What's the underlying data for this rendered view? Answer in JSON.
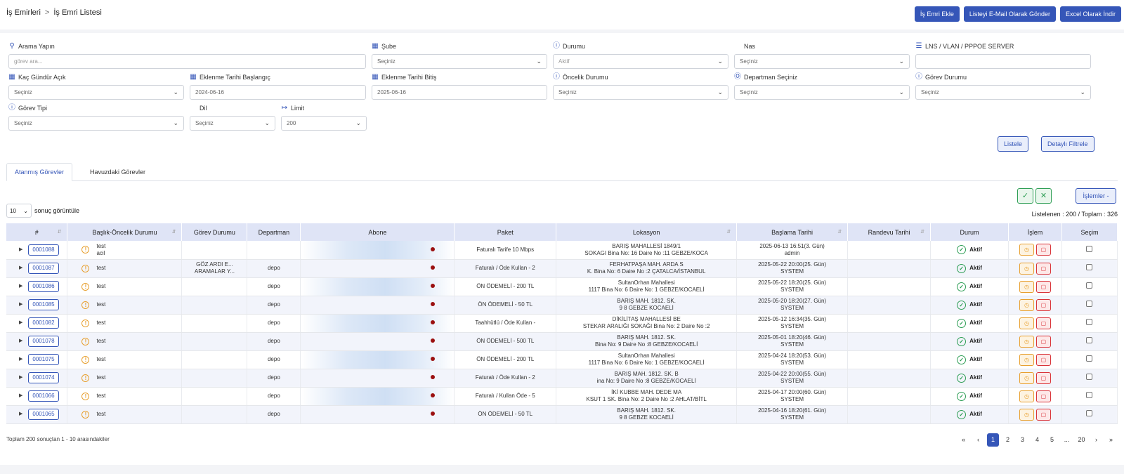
{
  "breadcrumb": {
    "root": "İş Emirleri",
    "sep": ">",
    "current": "İş Emri Listesi"
  },
  "top_buttons": {
    "add": "İş Emri Ekle",
    "email": "Listeyi E-Mail Olarak Gönder",
    "excel": "Excel Olarak İndir"
  },
  "filters": {
    "arama": {
      "label": "Arama Yapın",
      "placeholder": "görev ara..."
    },
    "sube": {
      "label": "Şube",
      "value": "Seçiniz"
    },
    "durumu": {
      "label": "Durumu",
      "value": "Aktif"
    },
    "nas": {
      "label": "Nas",
      "value": "Seçiniz"
    },
    "lns": {
      "label": "LNS / VLAN / PPPOE SERVER",
      "value": ""
    },
    "kac_gun": {
      "label": "Kaç Gündür Açık",
      "value": "Seçiniz"
    },
    "baslangic": {
      "label": "Eklenme Tarihi Başlangıç",
      "value": "2024-06-16"
    },
    "bitis": {
      "label": "Eklenme Tarihi Bitiş",
      "value": "2025-06-16"
    },
    "oncelik": {
      "label": "Öncelik Durumu",
      "value": "Seçiniz"
    },
    "departman": {
      "label": "Departman Seçiniz",
      "value": "Seçiniz"
    },
    "gorev_durumu": {
      "label": "Görev Durumu",
      "value": "Seçiniz"
    },
    "gorev_tipi": {
      "label": "Görev Tipi",
      "value": "Seçiniz"
    },
    "dil": {
      "label": "Dil",
      "value": "Seçiniz"
    },
    "limit": {
      "label": "Limit",
      "value": "200"
    }
  },
  "filter_buttons": {
    "listele": "Listele",
    "detayli": "Detaylı Filtrele"
  },
  "tabs": {
    "assigned": "Atanmış Görevler",
    "pool": "Havuzdaki Görevler"
  },
  "toolbar": {
    "approve_icon": "check-icon",
    "reject_icon": "x-icon",
    "islemler": "İşlemler -"
  },
  "page_size": {
    "value": "10",
    "suffix": "sonuç görüntüle"
  },
  "counts": {
    "text": "Listelenen : 200 / Toplam : 326"
  },
  "table": {
    "headers": [
      "#",
      "Başlık-Öncelik Durumu",
      "Görev Durumu",
      "Departman",
      "Abone",
      "Paket",
      "Lokasyon",
      "Başlama Tarihi",
      "Randevu Tarihi",
      "Durum",
      "İşlem",
      "Seçim"
    ],
    "rows": [
      {
        "id": "0001088",
        "title": "test",
        "title2": "acil",
        "gorev": "",
        "dep": "",
        "paket": "Faturalı Tarife 10 Mbps",
        "lok1": "BARIŞ MAHALLESİ 1849/1",
        "lok2": "SOKAGI Bina No: 16 Daire No :11 GEBZE/KOCA",
        "t1": "2025-06-13 16:51(3. Gün)",
        "t2": "admin",
        "randevu": "",
        "durum": "Aktif"
      },
      {
        "id": "0001087",
        "title": "test",
        "title2": "",
        "gorev": "GÖZ ARDI E... ARAMALAR Y...",
        "dep": "depo",
        "paket": "Faturalı / Öde Kullan - 2",
        "lok1": "FERHATPAŞA MAH. ARDA S",
        "lok2": "K. Bina No: 6 Daire No :2 ÇATALCA/İSTANBUL",
        "t1": "2025-05-22 20:00(25. Gün)",
        "t2": "SYSTEM",
        "randevu": "",
        "durum": "Aktif"
      },
      {
        "id": "0001086",
        "title": "test",
        "title2": "",
        "gorev": "",
        "dep": "depo",
        "paket": "ÖN ÖDEMELİ - 200 TL",
        "lok1": "SultanOrhan Mahallesi",
        "lok2": "1117 Bina No: 6 Daire No: 1 GEBZE/KOCAELİ",
        "t1": "2025-05-22 18:20(25. Gün)",
        "t2": "SYSTEM",
        "randevu": "",
        "durum": "Aktif"
      },
      {
        "id": "0001085",
        "title": "test",
        "title2": "",
        "gorev": "",
        "dep": "depo",
        "paket": "ÖN ÖDEMELİ - 50 TL",
        "lok1": "BARIŞ MAH. 1812. SK.",
        "lok2": "9 8 GEBZE KOCAELİ",
        "t1": "2025-05-20 18:20(27. Gün)",
        "t2": "SYSTEM",
        "randevu": "",
        "durum": "Aktif"
      },
      {
        "id": "0001082",
        "title": "test",
        "title2": "",
        "gorev": "",
        "dep": "depo",
        "paket": "Taahhütlü / Öde Kullan -",
        "lok1": "DİKİLİTAŞ MAHALLESİ BE",
        "lok2": "STEKAR ARALIĞI SOKAĞI Bina No: 2 Daire No :2",
        "t1": "2025-05-12 16:34(35. Gün)",
        "t2": "SYSTEM",
        "randevu": "",
        "durum": "Aktif"
      },
      {
        "id": "0001078",
        "title": "test",
        "title2": "",
        "gorev": "",
        "dep": "depo",
        "paket": "ÖN ÖDEMELİ - 500 TL",
        "lok1": "BARIŞ MAH. 1812. SK.",
        "lok2": "Bina No: 9 Daire No :8 GEBZE/KOCAELİ",
        "t1": "2025-05-01 18:20(46. Gün)",
        "t2": "SYSTEM",
        "randevu": "",
        "durum": "Aktif"
      },
      {
        "id": "0001075",
        "title": "test",
        "title2": "",
        "gorev": "",
        "dep": "depo",
        "paket": "ÖN ÖDEMELİ - 200 TL",
        "lok1": "SultanOrhan Mahallesi",
        "lok2": "1117 Bina No: 6 Daire No: 1 GEBZE/KOCAELİ",
        "t1": "2025-04-24 18:20(53. Gün)",
        "t2": "SYSTEM",
        "randevu": "",
        "durum": "Aktif"
      },
      {
        "id": "0001074",
        "title": "test",
        "title2": "",
        "gorev": "",
        "dep": "depo",
        "paket": "Faturalı / Öde Kullan - 2",
        "lok1": "BARIŞ MAH. 1812. SK. B",
        "lok2": "ina No: 9 Daire No :8 GEBZE/KOCAELİ",
        "t1": "2025-04-22 20:00(55. Gün)",
        "t2": "SYSTEM",
        "randevu": "",
        "durum": "Aktif"
      },
      {
        "id": "0001066",
        "title": "test",
        "title2": "",
        "gorev": "",
        "dep": "depo",
        "paket": "Faturalı / Kullan Öde - 5",
        "lok1": "İKİ KUBBE MAH. DEDE MA",
        "lok2": "KSUT 1 SK. Bina No: 2 Daire No :2 AHLAT/BİTL",
        "t1": "2025-04-17 20:00(60. Gün)",
        "t2": "SYSTEM",
        "randevu": "",
        "durum": "Aktif"
      },
      {
        "id": "0001065",
        "title": "test",
        "title2": "",
        "gorev": "",
        "dep": "depo",
        "paket": "ÖN ÖDEMELİ - 50 TL",
        "lok1": "BARIŞ MAH. 1812. SK.",
        "lok2": "9 8 GEBZE KOCAELİ",
        "t1": "2025-04-16 18:20(61. Gün)",
        "t2": "SYSTEM",
        "randevu": "",
        "durum": "Aktif"
      }
    ]
  },
  "footer": {
    "info": "Toplam 200 sonuçtan 1 - 10 arasındakiler",
    "pages": [
      "«",
      "‹",
      "1",
      "2",
      "3",
      "4",
      "5",
      "...",
      "20",
      "›",
      "»"
    ],
    "current_page": "1"
  }
}
